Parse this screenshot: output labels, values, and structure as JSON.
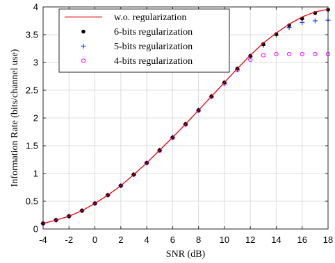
{
  "chart_data": {
    "type": "line",
    "xlabel": "SNR (dB)",
    "ylabel": "Information Rate (bits/channel use)",
    "xlim": [
      -4,
      18
    ],
    "ylim": [
      0,
      4
    ],
    "xticks": [
      -4,
      -2,
      0,
      2,
      4,
      6,
      8,
      10,
      12,
      14,
      16,
      18
    ],
    "yticks": [
      0,
      0.5,
      1,
      1.5,
      2,
      2.5,
      3,
      3.5,
      4
    ],
    "grid": true,
    "legend_position": "top-left",
    "series": [
      {
        "name": "w.o. regularization",
        "style": "line",
        "color": "#e8000b",
        "x": [
          -4,
          -3,
          -2,
          -1,
          0,
          1,
          2,
          3,
          4,
          5,
          6,
          7,
          8,
          9,
          10,
          11,
          12,
          13,
          14,
          15,
          16,
          17,
          18
        ],
        "y": [
          0.1,
          0.16,
          0.23,
          0.33,
          0.46,
          0.61,
          0.78,
          0.98,
          1.19,
          1.42,
          1.65,
          1.89,
          2.14,
          2.39,
          2.64,
          2.89,
          3.13,
          3.35,
          3.53,
          3.69,
          3.82,
          3.91,
          3.96
        ]
      },
      {
        "name": "6-bits regularization",
        "style": "marker-dot",
        "color": "#000000",
        "x": [
          -4,
          -3,
          -2,
          -1,
          0,
          1,
          2,
          3,
          4,
          5,
          6,
          7,
          8,
          9,
          10,
          11,
          12,
          13,
          14,
          15,
          16,
          17,
          18
        ],
        "y": [
          0.1,
          0.16,
          0.23,
          0.33,
          0.46,
          0.61,
          0.78,
          0.98,
          1.19,
          1.42,
          1.65,
          1.89,
          2.14,
          2.39,
          2.64,
          2.89,
          3.12,
          3.33,
          3.51,
          3.67,
          3.79,
          3.89,
          3.95
        ]
      },
      {
        "name": "5-bits regularization",
        "style": "marker-plus",
        "color": "#1f3fff",
        "x": [
          -4,
          -3,
          -2,
          -1,
          0,
          1,
          2,
          3,
          4,
          5,
          6,
          7,
          8,
          9,
          10,
          11,
          12,
          13,
          14,
          15,
          16,
          17,
          18
        ],
        "y": [
          0.1,
          0.16,
          0.23,
          0.33,
          0.46,
          0.61,
          0.78,
          0.98,
          1.19,
          1.42,
          1.65,
          1.89,
          2.14,
          2.39,
          2.63,
          2.87,
          3.1,
          3.31,
          3.49,
          3.63,
          3.72,
          3.75,
          3.76
        ]
      },
      {
        "name": "4-bits regularization",
        "style": "marker-circle",
        "color": "#ff00ff",
        "x": [
          -4,
          -3,
          -2,
          -1,
          0,
          1,
          2,
          3,
          4,
          5,
          6,
          7,
          8,
          9,
          10,
          11,
          12,
          13,
          14,
          15,
          16,
          17,
          18
        ],
        "y": [
          0.1,
          0.16,
          0.23,
          0.33,
          0.46,
          0.61,
          0.78,
          0.98,
          1.19,
          1.41,
          1.64,
          1.88,
          2.13,
          2.38,
          2.62,
          2.86,
          3.05,
          3.13,
          3.15,
          3.15,
          3.15,
          3.15,
          3.15
        ]
      }
    ]
  }
}
